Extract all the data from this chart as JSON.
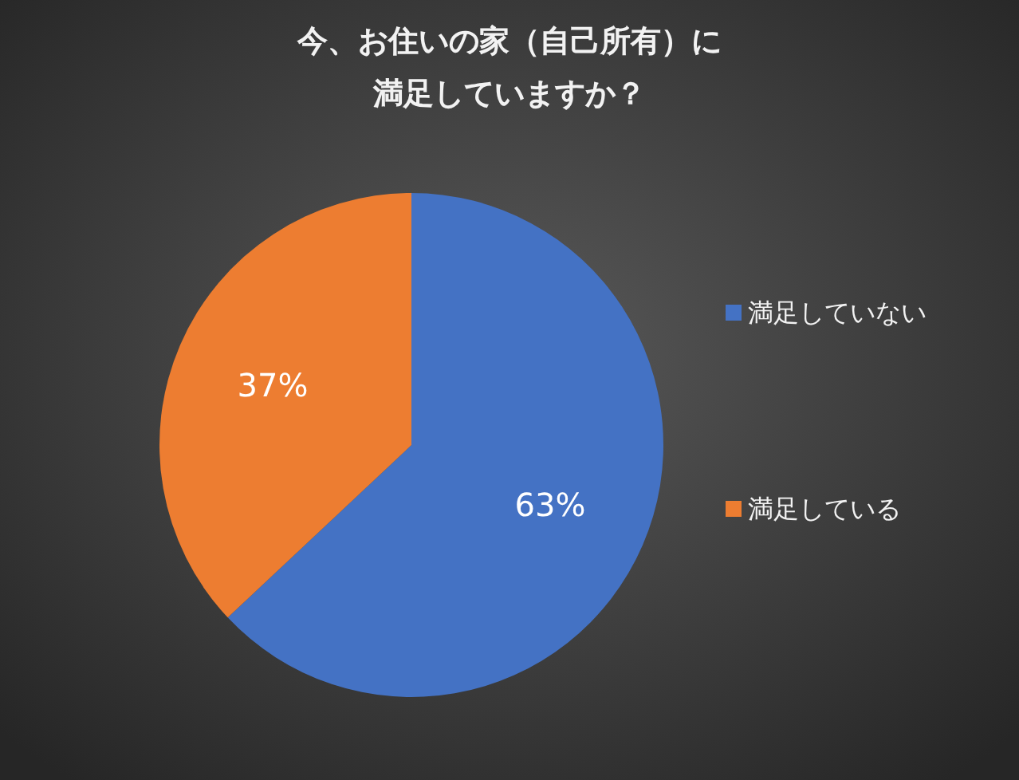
{
  "chart_data": {
    "type": "pie",
    "title": "今、お住いの家（自己所有）に満足していますか？",
    "categories": [
      "満足していない",
      "満足している"
    ],
    "values": [
      63,
      37
    ],
    "colors": [
      "#4472c4",
      "#ed7d31"
    ],
    "value_labels": [
      "63%",
      "37%"
    ],
    "legend": "right"
  }
}
